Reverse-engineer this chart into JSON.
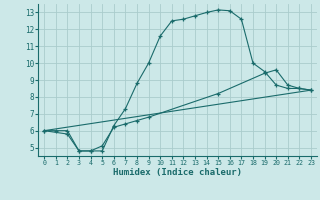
{
  "title": "",
  "xlabel": "Humidex (Indice chaleur)",
  "bg_color": "#cce8e8",
  "grid_color": "#aacccc",
  "line_color": "#1a6b6b",
  "xlim": [
    -0.5,
    23.5
  ],
  "ylim": [
    4.5,
    13.5
  ],
  "xticks": [
    0,
    1,
    2,
    3,
    4,
    5,
    6,
    7,
    8,
    9,
    10,
    11,
    12,
    13,
    14,
    15,
    16,
    17,
    18,
    19,
    20,
    21,
    22,
    23
  ],
  "yticks": [
    5,
    6,
    7,
    8,
    9,
    10,
    11,
    12,
    13
  ],
  "line1_x": [
    0,
    1,
    2,
    3,
    4,
    5,
    6,
    7,
    8,
    9,
    10,
    11,
    12,
    13,
    14,
    15,
    16,
    17,
    18,
    19,
    20,
    21,
    22,
    23
  ],
  "line1_y": [
    6.0,
    6.0,
    6.0,
    4.8,
    4.8,
    4.8,
    6.3,
    7.3,
    8.8,
    10.0,
    11.6,
    12.5,
    12.6,
    12.8,
    13.0,
    13.15,
    13.1,
    12.6,
    10.0,
    9.5,
    8.7,
    8.5,
    8.5,
    8.4
  ],
  "line2_x": [
    0,
    2,
    3,
    4,
    5,
    6,
    7,
    8,
    9,
    15,
    19,
    20,
    21,
    22,
    23
  ],
  "line2_y": [
    6.0,
    5.8,
    4.8,
    4.8,
    5.1,
    6.2,
    6.4,
    6.6,
    6.8,
    8.2,
    9.4,
    9.6,
    8.7,
    8.5,
    8.4
  ],
  "line3_x": [
    0,
    23
  ],
  "line3_y": [
    6.0,
    8.4
  ]
}
